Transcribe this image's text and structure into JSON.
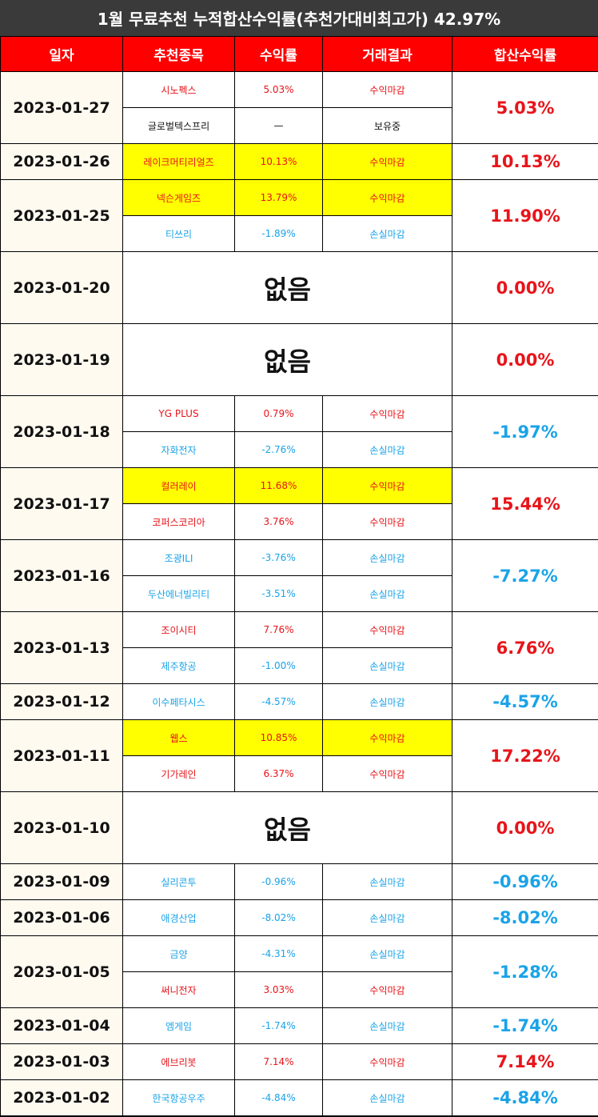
{
  "title": "1월 무료추천 누적합산수익률(추천가대비최고가) 42.97%",
  "headers": [
    "일자",
    "추천종목",
    "수익률",
    "거래결과",
    "합산수익률"
  ],
  "none_label": "없음",
  "colors": {
    "profit": "#e8141a",
    "loss": "#1aa3e8",
    "header": "#ff0000",
    "highlight": "#ffff00"
  },
  "groups": [
    {
      "date": "2023-01-27",
      "total": "5.03%",
      "sign": "pos",
      "rows": [
        {
          "stock": "시노펙스",
          "ret": "5.03%",
          "result": "수익마감",
          "type": "pos",
          "hl": false
        },
        {
          "stock": "글로벌텍스프리",
          "ret": "—",
          "result": "보유중",
          "type": "hold",
          "hl": false
        }
      ]
    },
    {
      "date": "2023-01-26",
      "total": "10.13%",
      "sign": "pos",
      "rows": [
        {
          "stock": "레이크머티리얼즈",
          "ret": "10.13%",
          "result": "수익마감",
          "type": "pos",
          "hl": true
        }
      ]
    },
    {
      "date": "2023-01-25",
      "total": "11.90%",
      "sign": "pos",
      "rows": [
        {
          "stock": "넥슨게임즈",
          "ret": "13.79%",
          "result": "수익마감",
          "type": "pos",
          "hl": true
        },
        {
          "stock": "티쓰리",
          "ret": "-1.89%",
          "result": "손실마감",
          "type": "neg",
          "hl": false
        }
      ]
    },
    {
      "date": "2023-01-20",
      "total": "0.00%",
      "sign": "pos",
      "none": true,
      "rows": []
    },
    {
      "date": "2023-01-19",
      "total": "0.00%",
      "sign": "pos",
      "none": true,
      "rows": []
    },
    {
      "date": "2023-01-18",
      "total": "-1.97%",
      "sign": "neg",
      "rows": [
        {
          "stock": "YG PLUS",
          "ret": "0.79%",
          "result": "수익마감",
          "type": "pos",
          "hl": false
        },
        {
          "stock": "자화전자",
          "ret": "-2.76%",
          "result": "손실마감",
          "type": "neg",
          "hl": false
        }
      ]
    },
    {
      "date": "2023-01-17",
      "total": "15.44%",
      "sign": "pos",
      "rows": [
        {
          "stock": "컬러레이",
          "ret": "11.68%",
          "result": "수익마감",
          "type": "pos",
          "hl": true
        },
        {
          "stock": "코퍼스코리아",
          "ret": "3.76%",
          "result": "수익마감",
          "type": "pos",
          "hl": false
        }
      ]
    },
    {
      "date": "2023-01-16",
      "total": "-7.27%",
      "sign": "neg",
      "rows": [
        {
          "stock": "조광ILI",
          "ret": "-3.76%",
          "result": "손실마감",
          "type": "neg",
          "hl": false
        },
        {
          "stock": "두산에너빌리티",
          "ret": "-3.51%",
          "result": "손실마감",
          "type": "neg",
          "hl": false
        }
      ]
    },
    {
      "date": "2023-01-13",
      "total": "6.76%",
      "sign": "pos",
      "rows": [
        {
          "stock": "조이시티",
          "ret": "7.76%",
          "result": "수익마감",
          "type": "pos",
          "hl": false
        },
        {
          "stock": "제주항공",
          "ret": "-1.00%",
          "result": "손실마감",
          "type": "neg",
          "hl": false
        }
      ]
    },
    {
      "date": "2023-01-12",
      "total": "-4.57%",
      "sign": "neg",
      "rows": [
        {
          "stock": "이수페타시스",
          "ret": "-4.57%",
          "result": "손실마감",
          "type": "neg",
          "hl": false
        }
      ]
    },
    {
      "date": "2023-01-11",
      "total": "17.22%",
      "sign": "pos",
      "rows": [
        {
          "stock": "웹스",
          "ret": "10.85%",
          "result": "수익마감",
          "type": "pos",
          "hl": true
        },
        {
          "stock": "기가레인",
          "ret": "6.37%",
          "result": "수익마감",
          "type": "pos",
          "hl": false
        }
      ]
    },
    {
      "date": "2023-01-10",
      "total": "0.00%",
      "sign": "pos",
      "none": true,
      "rows": []
    },
    {
      "date": "2023-01-09",
      "total": "-0.96%",
      "sign": "neg",
      "rows": [
        {
          "stock": "실리콘투",
          "ret": "-0.96%",
          "result": "손실마감",
          "type": "neg",
          "hl": false
        }
      ]
    },
    {
      "date": "2023-01-06",
      "total": "-8.02%",
      "sign": "neg",
      "rows": [
        {
          "stock": "애경산업",
          "ret": "-8.02%",
          "result": "손실마감",
          "type": "neg",
          "hl": false
        }
      ]
    },
    {
      "date": "2023-01-05",
      "total": "-1.28%",
      "sign": "neg",
      "rows": [
        {
          "stock": "금양",
          "ret": "-4.31%",
          "result": "손실마감",
          "type": "neg",
          "hl": false
        },
        {
          "stock": "써니전자",
          "ret": "3.03%",
          "result": "수익마감",
          "type": "pos",
          "hl": false
        }
      ]
    },
    {
      "date": "2023-01-04",
      "total": "-1.74%",
      "sign": "neg",
      "rows": [
        {
          "stock": "엠게임",
          "ret": "-1.74%",
          "result": "손실마감",
          "type": "neg",
          "hl": false
        }
      ]
    },
    {
      "date": "2023-01-03",
      "total": "7.14%",
      "sign": "pos",
      "rows": [
        {
          "stock": "에브리봇",
          "ret": "7.14%",
          "result": "수익마감",
          "type": "pos",
          "hl": false
        }
      ]
    },
    {
      "date": "2023-01-02",
      "total": "-4.84%",
      "sign": "neg",
      "rows": [
        {
          "stock": "한국항공우주",
          "ret": "-4.84%",
          "result": "손실마감",
          "type": "neg",
          "hl": false
        }
      ]
    }
  ]
}
